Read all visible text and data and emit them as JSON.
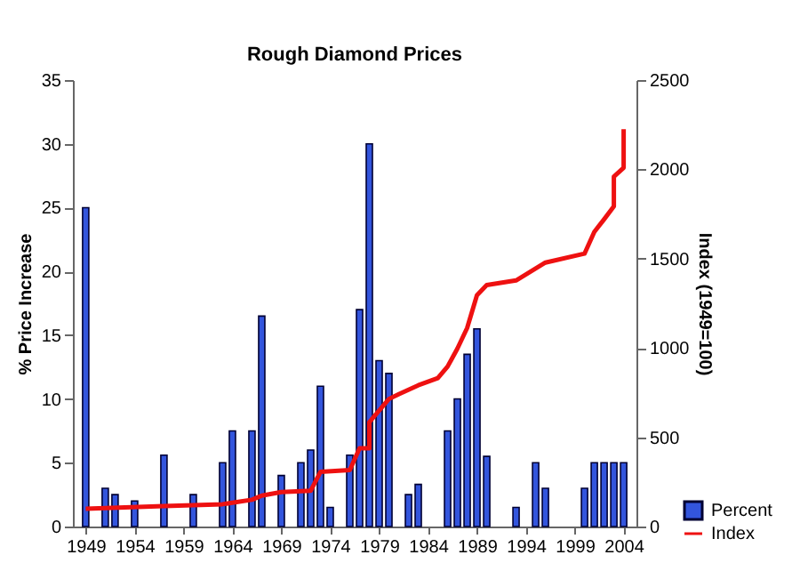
{
  "chart_data": {
    "type": "bar",
    "title": "Rough Diamond Prices",
    "ylabel": "% Price Increase",
    "y2label": "Index (1949=100)",
    "x": [
      1949,
      1951,
      1952,
      1954,
      1957,
      1960,
      1963,
      1964,
      1966,
      1967,
      1969,
      1971,
      1972,
      1973,
      1974,
      1976,
      1977,
      1978,
      1979,
      1980,
      1982,
      1983,
      1986,
      1987,
      1988,
      1989,
      1990,
      1993,
      1995,
      1996,
      2000,
      2001,
      2002,
      2003,
      2004
    ],
    "series": [
      {
        "name": "Percent",
        "color": "#3355dd",
        "values": [
          25,
          3,
          2.5,
          2,
          5.6,
          2.5,
          5,
          7.5,
          7.5,
          16.5,
          4,
          5,
          6,
          11,
          1.5,
          5.6,
          17,
          30,
          13,
          12,
          2.5,
          3.3,
          7.5,
          10,
          13.5,
          15.5,
          5.5,
          1.5,
          5,
          3,
          3,
          5,
          5,
          5,
          5
        ]
      },
      {
        "name": "Index",
        "type": "line",
        "axis": "y2",
        "color": "#ee1111",
        "x": [
          1949,
          1957,
          1963,
          1966,
          1967,
          1969,
          1972,
          1973,
          1976,
          1977,
          1978,
          1978,
          1980,
          1981,
          1983,
          1985,
          1986,
          1987,
          1988,
          1989,
          1990,
          1993,
          1996,
          2000,
          2001,
          2002,
          2003,
          2003,
          2004,
          2004
        ],
        "values": [
          100,
          115,
          125,
          150,
          173,
          193,
          200,
          306,
          316,
          438,
          438,
          585,
          714,
          741,
          791,
          831,
          896,
          996,
          1112,
          1295,
          1352,
          1378,
          1478,
          1528,
          1650,
          1720,
          1793,
          1959,
          2009,
          2225
        ]
      }
    ],
    "xlim": [
      1948.6,
      2004.4
    ],
    "xticks": [
      1949,
      1954,
      1959,
      1964,
      1969,
      1974,
      1979,
      1984,
      1989,
      1994,
      1999,
      2004
    ],
    "ylim": [
      0,
      35
    ],
    "yticks": [
      0,
      5,
      10,
      15,
      20,
      25,
      30,
      35
    ],
    "y2lim": [
      0,
      2500
    ],
    "y2ticks": [
      0,
      500,
      1000,
      1500,
      2000,
      2500
    ],
    "grid": false,
    "legend": "bottom right"
  }
}
